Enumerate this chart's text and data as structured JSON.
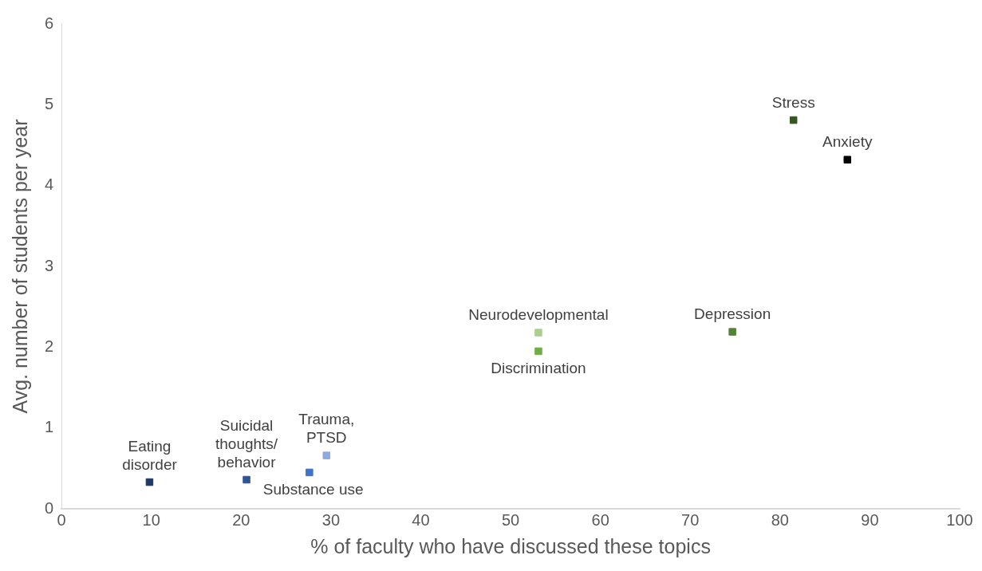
{
  "chart_data": {
    "type": "scatter",
    "xlabel": "% of faculty who have discussed these topics",
    "ylabel": "Avg. number of students per year",
    "xlim": [
      0,
      100
    ],
    "xticks": [
      0,
      10,
      20,
      30,
      40,
      50,
      60,
      70,
      80,
      90,
      100
    ],
    "ylim": [
      0,
      6
    ],
    "yticks": [
      0,
      1,
      2,
      3,
      4,
      5,
      6
    ],
    "grid": false,
    "legend": false,
    "marker": "square",
    "series": [
      {
        "name": "Eating\ndisorder",
        "color": "#1f3864",
        "x": [
          9.8
        ],
        "values": [
          0.33
        ]
      },
      {
        "name": "Suicidal\nthoughts/\nbehavior",
        "color": "#2f5597",
        "x": [
          20.6
        ],
        "values": [
          0.36
        ]
      },
      {
        "name": "Substance use",
        "color": "#4472c4",
        "x": [
          27.6
        ],
        "values": [
          0.45
        ]
      },
      {
        "name": "Trauma,\nPTSD",
        "color": "#8faadc",
        "x": [
          29.5
        ],
        "values": [
          0.66
        ]
      },
      {
        "name": "Neurodevelopmental",
        "color": "#a9d18e",
        "x": [
          53.1
        ],
        "values": [
          2.18
        ]
      },
      {
        "name": "Discrimination",
        "color": "#70ad47",
        "x": [
          53.1
        ],
        "values": [
          1.95
        ]
      },
      {
        "name": "Depression",
        "color": "#548235",
        "x": [
          74.7
        ],
        "values": [
          2.19
        ]
      },
      {
        "name": "Stress",
        "color": "#375623",
        "x": [
          81.5
        ],
        "values": [
          4.81
        ]
      },
      {
        "name": "Anxiety",
        "color": "#000000",
        "x": [
          87.5
        ],
        "values": [
          4.32
        ]
      }
    ]
  }
}
